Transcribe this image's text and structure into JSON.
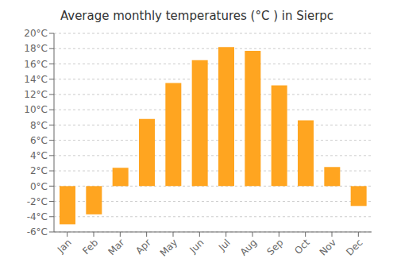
{
  "chart_data": {
    "type": "bar",
    "title": "Average monthly temperatures (°C ) in Sierpc",
    "categories": [
      "Jan",
      "Feb",
      "Mar",
      "Apr",
      "May",
      "Jun",
      "Jul",
      "Aug",
      "Sep",
      "Oct",
      "Nov",
      "Dec"
    ],
    "values": [
      -5.0,
      -3.7,
      2.4,
      8.8,
      13.5,
      16.5,
      18.2,
      17.7,
      13.2,
      8.6,
      2.5,
      -2.6
    ],
    "color": "#FFA520",
    "ylim": [
      -6,
      20
    ],
    "yticks": [
      {
        "value": -6,
        "label": "-6°C"
      },
      {
        "value": -4,
        "label": "-4°C"
      },
      {
        "value": -2,
        "label": "-2°C"
      },
      {
        "value": 0,
        "label": "0°C"
      },
      {
        "value": 2,
        "label": "2°C"
      },
      {
        "value": 4,
        "label": "4°C"
      },
      {
        "value": 6,
        "label": "6°C"
      },
      {
        "value": 8,
        "label": "8°C"
      },
      {
        "value": 10,
        "label": "10°C"
      },
      {
        "value": 12,
        "label": "12°C"
      },
      {
        "value": 14,
        "label": "14°C"
      },
      {
        "value": 16,
        "label": "16°C"
      },
      {
        "value": 18,
        "label": "18°C"
      },
      {
        "value": 20,
        "label": "20°C"
      }
    ],
    "grid": true
  }
}
